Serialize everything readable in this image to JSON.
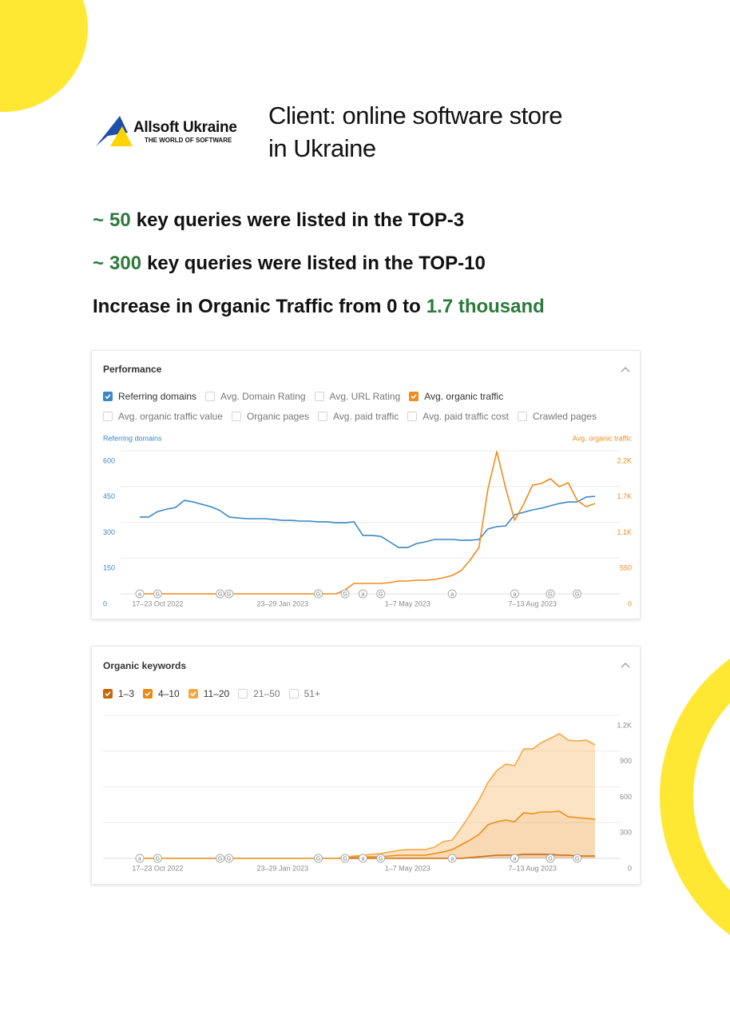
{
  "logo": {
    "name": "Allsoft Ukraine",
    "tagline": "THE WORLD OF SOFTWARE"
  },
  "header": {
    "title_lines": [
      "Client: online software store",
      "in Ukraine"
    ]
  },
  "highlights": [
    {
      "prefix": "~",
      "number": "50",
      "text": "key queries were listed in the TOP-3"
    },
    {
      "prefix": "~",
      "number": "300",
      "text": "key queries were listed in the TOP-10"
    },
    {
      "text": "Increase in Organic Traffic from 0 to",
      "number": "1.7 thousand"
    }
  ],
  "chart_data": [
    {
      "type": "line",
      "title": "Performance",
      "options": [
        {
          "label": "Referring domains",
          "checked": true,
          "color": "#3b87c4"
        },
        {
          "label": "Avg. Domain Rating",
          "checked": false
        },
        {
          "label": "Avg. URL Rating",
          "checked": false
        },
        {
          "label": "Avg. organic traffic",
          "checked": true,
          "color": "#ee8c1c"
        },
        {
          "label": "Avg. organic traffic value",
          "checked": false
        },
        {
          "label": "Organic pages",
          "checked": false
        },
        {
          "label": "Avg. paid traffic",
          "checked": false
        },
        {
          "label": "Avg. paid traffic cost",
          "checked": false
        },
        {
          "label": "Crawled pages",
          "checked": false
        }
      ],
      "categories": [
        null,
        null,
        "17–23 Oct 2022",
        null,
        null,
        null,
        null,
        null,
        null,
        null,
        null,
        null,
        null,
        null,
        null,
        null,
        "23–29 Jan 2023",
        null,
        null,
        null,
        null,
        null,
        null,
        null,
        null,
        null,
        null,
        null,
        null,
        null,
        "1–7 May 2023",
        null,
        null,
        null,
        null,
        null,
        null,
        null,
        null,
        null,
        null,
        null,
        null,
        null,
        "7–13 Aug 2023",
        null,
        null,
        null,
        null,
        null,
        null,
        null
      ],
      "series": [
        {
          "name": "Referring domains",
          "color": "#3b87c4",
          "axis": "y",
          "values": [
            322,
            322,
            345,
            355,
            362,
            392,
            385,
            375,
            365,
            349,
            322,
            318,
            315,
            315,
            315,
            312,
            308,
            308,
            305,
            305,
            302,
            302,
            298,
            298,
            302,
            245,
            245,
            241,
            218,
            194,
            194,
            211,
            218,
            228,
            228,
            228,
            225,
            225,
            228,
            272,
            282,
            285,
            332,
            342,
            352,
            359,
            369,
            379,
            385,
            385,
            406,
            409
          ]
        },
        {
          "name": "Avg. organic traffic",
          "color": "#ee8c1c",
          "axis": "y2",
          "values": [
            0,
            0,
            0,
            0,
            0,
            0,
            0,
            0,
            0,
            0,
            0,
            0,
            0,
            0,
            0,
            0,
            0,
            0,
            0,
            0,
            0,
            0,
            0,
            61,
            160,
            160,
            160,
            160,
            172,
            197,
            197,
            209,
            209,
            221,
            246,
            283,
            356,
            516,
            713,
            1610,
            2188,
            1622,
            1131,
            1377,
            1671,
            1696,
            1770,
            1647,
            1708,
            1438,
            1340,
            1389
          ]
        }
      ],
      "ylim": [
        0,
        600
      ],
      "yticks": [
        0,
        150,
        300,
        450,
        600
      ],
      "y2lim": [
        0,
        2200
      ],
      "y2ticks": [
        0,
        550,
        {
          "value": 1100,
          "label": "1.1K"
        },
        {
          "value": 1650,
          "label": "1.7K"
        },
        {
          "value": 2200,
          "label": "2.2K"
        }
      ],
      "grid": true,
      "markers": [
        {
          "x": 0,
          "label": "a"
        },
        {
          "x": 2,
          "label": "G"
        },
        {
          "x": 9,
          "label": "G"
        },
        {
          "x": 10,
          "label": "G"
        },
        {
          "x": 20,
          "label": "G"
        },
        {
          "x": 23,
          "label": "G"
        },
        {
          "x": 25,
          "label": "a"
        },
        {
          "x": 27,
          "label": "G"
        },
        {
          "x": 35,
          "label": "a"
        },
        {
          "x": 42,
          "label": "a"
        },
        {
          "x": 46,
          "label": "G"
        },
        {
          "x": 49,
          "label": "G"
        }
      ]
    },
    {
      "type": "area",
      "title": "Organic keywords",
      "stacked": true,
      "yaxis_position": "right",
      "categories": [
        null,
        null,
        "17–23 Oct 2022",
        null,
        null,
        null,
        null,
        null,
        null,
        null,
        null,
        null,
        null,
        null,
        null,
        null,
        "23–29 Jan 2023",
        null,
        null,
        null,
        null,
        null,
        null,
        null,
        null,
        null,
        null,
        null,
        null,
        null,
        "1–7 May 2023",
        null,
        null,
        null,
        null,
        null,
        null,
        null,
        null,
        null,
        null,
        null,
        null,
        null,
        "7–13 Aug 2023",
        null,
        null,
        null,
        null,
        null,
        null,
        null
      ],
      "series": [
        {
          "name": "1–3",
          "color": "#c4680c",
          "values": [
            0,
            0,
            0,
            0,
            0,
            0,
            0,
            0,
            0,
            0,
            0,
            0,
            0,
            0,
            0,
            0,
            0,
            0,
            0,
            0,
            0,
            0,
            0,
            0,
            0,
            0,
            0,
            0,
            0,
            0,
            0,
            0,
            0,
            0,
            0,
            0,
            0,
            7,
            13,
            20,
            27,
            27,
            27,
            34,
            34,
            34,
            34,
            27,
            27,
            20,
            20,
            20
          ]
        },
        {
          "name": "4–10",
          "color": "#e98a12",
          "values": [
            0,
            0,
            0,
            0,
            0,
            0,
            0,
            0,
            0,
            0,
            0,
            0,
            0,
            0,
            0,
            0,
            0,
            0,
            0,
            0,
            0,
            0,
            0,
            7,
            13,
            13,
            13,
            13,
            20,
            27,
            27,
            27,
            27,
            40,
            54,
            74,
            114,
            147,
            188,
            262,
            281,
            295,
            281,
            348,
            341,
            355,
            355,
            369,
            322,
            322,
            315,
            308
          ]
        },
        {
          "name": "11–20",
          "color": "#f4a844",
          "values": [
            0,
            0,
            0,
            0,
            0,
            0,
            0,
            0,
            0,
            0,
            0,
            0,
            0,
            0,
            0,
            0,
            0,
            0,
            0,
            0,
            0,
            0,
            0,
            6,
            7,
            14,
            21,
            27,
            34,
            40,
            47,
            47,
            47,
            54,
            87,
            80,
            141,
            215,
            288,
            355,
            429,
            469,
            470,
            536,
            543,
            583,
            617,
            650,
            643,
            643,
            657,
            624
          ]
        }
      ],
      "unchecked_legend": [
        "21–50",
        "51+"
      ],
      "ylim": [
        0,
        1200
      ],
      "yticks": [
        0,
        300,
        600,
        900,
        {
          "value": 1200,
          "label": "1.2K"
        }
      ],
      "grid": true,
      "markers": [
        {
          "x": 0,
          "label": "a"
        },
        {
          "x": 2,
          "label": "G"
        },
        {
          "x": 9,
          "label": "G"
        },
        {
          "x": 10,
          "label": "G"
        },
        {
          "x": 20,
          "label": "G"
        },
        {
          "x": 23,
          "label": "G"
        },
        {
          "x": 25,
          "label": "a"
        },
        {
          "x": 27,
          "label": "G"
        },
        {
          "x": 35,
          "label": "a"
        },
        {
          "x": 42,
          "label": "a"
        },
        {
          "x": 46,
          "label": "G"
        },
        {
          "x": 49,
          "label": "G"
        }
      ]
    }
  ]
}
